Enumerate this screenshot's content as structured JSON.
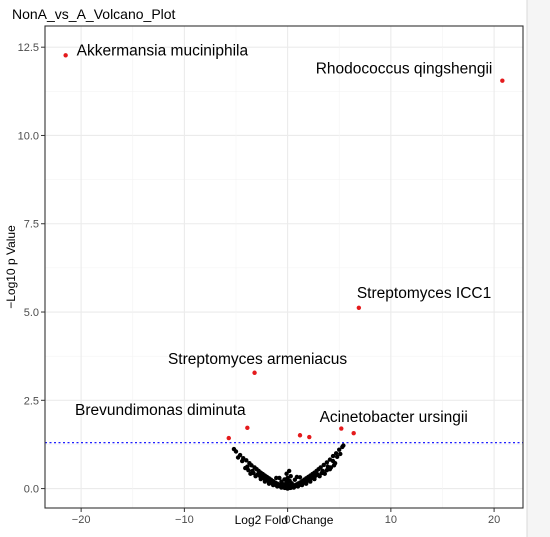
{
  "chart_data": {
    "type": "scatter",
    "title": "NonA_vs_A_Volcano_Plot",
    "xlabel": "Log2 Fold Change",
    "ylabel": "−Log10 p Value",
    "xlim": [
      -23.5,
      22.8
    ],
    "ylim": [
      -0.55,
      13.1
    ],
    "xticks": [
      -20,
      -10,
      0,
      10,
      20
    ],
    "yticks": [
      0.0,
      2.5,
      5.0,
      7.5,
      10.0,
      12.5
    ],
    "xtick_labels": [
      "−20",
      "−10",
      "0",
      "10",
      "20"
    ],
    "ytick_labels": [
      "0.0",
      "2.5",
      "5.0",
      "7.5",
      "10.0",
      "12.5"
    ],
    "threshold": {
      "y": 1.3,
      "color": "#0000ff",
      "style": "dotted"
    },
    "grid": true,
    "legend": "none",
    "colors": {
      "significant": "#e41a1c",
      "nonsignificant": "#000000",
      "panel_border": "#333333",
      "gridline": "#ebebeb"
    },
    "significant_points": [
      {
        "x": -21.5,
        "y": 12.27,
        "label": "Akkermansia muciniphila"
      },
      {
        "x": 20.8,
        "y": 11.55,
        "label": "Rhodococcus qingshengii"
      },
      {
        "x": 6.9,
        "y": 5.12,
        "label": "Streptomyces ICC1"
      },
      {
        "x": -3.2,
        "y": 3.28,
        "label": "Streptomyces armeniacus"
      },
      {
        "x": -3.9,
        "y": 1.72,
        "label": "Brevundimonas diminuta"
      },
      {
        "x": 6.4,
        "y": 1.57,
        "label": "Acinetobacter ursingii"
      },
      {
        "x": -5.7,
        "y": 1.43
      },
      {
        "x": 1.2,
        "y": 1.51
      },
      {
        "x": 2.1,
        "y": 1.46
      },
      {
        "x": 5.2,
        "y": 1.7
      }
    ],
    "nonsignificant_points": [
      [
        -5.2,
        1.12
      ],
      [
        -5.0,
        1.05
      ],
      [
        -4.6,
        0.95
      ],
      [
        -4.3,
        0.86
      ],
      [
        -4.0,
        0.8
      ],
      [
        -3.7,
        0.72
      ],
      [
        -3.5,
        0.66
      ],
      [
        -3.2,
        0.6
      ],
      [
        -3.0,
        0.55
      ],
      [
        -2.8,
        0.5
      ],
      [
        -2.6,
        0.45
      ],
      [
        -2.4,
        0.41
      ],
      [
        -2.2,
        0.37
      ],
      [
        -2.0,
        0.33
      ],
      [
        -1.8,
        0.29
      ],
      [
        -1.6,
        0.25
      ],
      [
        -1.4,
        0.21
      ],
      [
        -1.2,
        0.17
      ],
      [
        -1.0,
        0.14
      ],
      [
        -0.8,
        0.11
      ],
      [
        -0.6,
        0.08
      ],
      [
        -0.4,
        0.05
      ],
      [
        -0.2,
        0.02
      ],
      [
        0.0,
        0.0
      ],
      [
        0.2,
        0.02
      ],
      [
        0.4,
        0.05
      ],
      [
        0.6,
        0.08
      ],
      [
        0.8,
        0.11
      ],
      [
        1.0,
        0.14
      ],
      [
        1.2,
        0.17
      ],
      [
        1.4,
        0.21
      ],
      [
        1.6,
        0.25
      ],
      [
        1.8,
        0.29
      ],
      [
        2.0,
        0.33
      ],
      [
        2.2,
        0.37
      ],
      [
        2.4,
        0.41
      ],
      [
        2.6,
        0.45
      ],
      [
        2.8,
        0.5
      ],
      [
        3.0,
        0.55
      ],
      [
        3.2,
        0.6
      ],
      [
        3.5,
        0.67
      ],
      [
        3.8,
        0.74
      ],
      [
        4.1,
        0.82
      ],
      [
        4.4,
        0.92
      ],
      [
        4.7,
        1.0
      ],
      [
        5.0,
        1.1
      ],
      [
        5.3,
        1.18
      ],
      [
        -4.8,
        0.88
      ],
      [
        -4.4,
        0.78
      ],
      [
        -3.9,
        0.62
      ],
      [
        -3.4,
        0.5
      ],
      [
        -2.9,
        0.4
      ],
      [
        -2.5,
        0.33
      ],
      [
        -2.1,
        0.25
      ],
      [
        -1.7,
        0.2
      ],
      [
        -1.3,
        0.13
      ],
      [
        -0.9,
        0.08
      ],
      [
        -0.5,
        0.04
      ],
      [
        0.5,
        0.04
      ],
      [
        0.9,
        0.08
      ],
      [
        1.3,
        0.13
      ],
      [
        1.7,
        0.2
      ],
      [
        2.1,
        0.25
      ],
      [
        2.5,
        0.33
      ],
      [
        2.9,
        0.4
      ],
      [
        3.4,
        0.5
      ],
      [
        3.9,
        0.62
      ],
      [
        4.4,
        0.78
      ],
      [
        4.8,
        0.9
      ],
      [
        5.1,
        0.98
      ],
      [
        -3.6,
        0.42
      ],
      [
        -3.1,
        0.35
      ],
      [
        -2.6,
        0.27
      ],
      [
        -2.2,
        0.2
      ],
      [
        -1.8,
        0.14
      ],
      [
        -1.4,
        0.1
      ],
      [
        -1.0,
        0.06
      ],
      [
        -0.6,
        0.03
      ],
      [
        0.6,
        0.03
      ],
      [
        1.0,
        0.06
      ],
      [
        1.4,
        0.1
      ],
      [
        1.8,
        0.14
      ],
      [
        2.2,
        0.2
      ],
      [
        2.6,
        0.27
      ],
      [
        3.1,
        0.35
      ],
      [
        3.6,
        0.42
      ],
      [
        4.1,
        0.55
      ],
      [
        4.5,
        0.66
      ],
      [
        -4.1,
        0.58
      ],
      [
        -3.8,
        0.52
      ],
      [
        -3.3,
        0.44
      ],
      [
        -2.7,
        0.36
      ],
      [
        -2.3,
        0.29
      ],
      [
        -1.9,
        0.22
      ],
      [
        -1.5,
        0.16
      ],
      [
        -1.1,
        0.1
      ],
      [
        -0.7,
        0.06
      ],
      [
        -0.3,
        0.02
      ],
      [
        0.3,
        0.02
      ],
      [
        0.7,
        0.06
      ],
      [
        1.1,
        0.1
      ],
      [
        1.5,
        0.16
      ],
      [
        1.9,
        0.22
      ],
      [
        2.3,
        0.29
      ],
      [
        2.7,
        0.36
      ],
      [
        3.3,
        0.44
      ],
      [
        3.8,
        0.52
      ],
      [
        4.2,
        0.6
      ],
      [
        4.6,
        0.72
      ],
      [
        5.4,
        1.22
      ],
      [
        -0.4,
        0.12
      ],
      [
        0.1,
        0.1
      ],
      [
        0.4,
        0.15
      ],
      [
        -0.1,
        0.18
      ],
      [
        0.2,
        0.22
      ],
      [
        -0.2,
        0.08
      ],
      [
        0.0,
        0.3
      ],
      [
        0.3,
        0.35
      ],
      [
        -0.3,
        0.26
      ],
      [
        0.15,
        0.5
      ],
      [
        -0.1,
        0.42
      ],
      [
        0.05,
        0.2
      ],
      [
        -0.6,
        0.2
      ],
      [
        0.7,
        0.25
      ],
      [
        -0.8,
        0.3
      ],
      [
        0.9,
        0.33
      ],
      [
        -1.1,
        0.3
      ],
      [
        1.2,
        0.32
      ]
    ],
    "annotations": [
      "Akkermansia muciniphila",
      "Rhodococcus qingshengii",
      "Streptomyces ICC1",
      "Streptomyces armeniacus",
      "Brevundimonas diminuta",
      "Acinetobacter ursingii"
    ]
  }
}
